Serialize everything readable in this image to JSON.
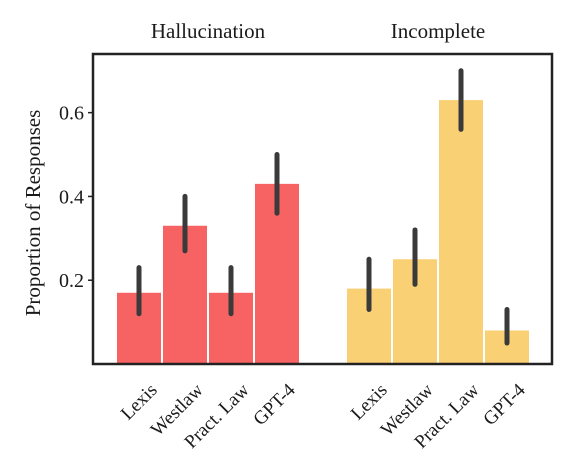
{
  "chart_data": {
    "type": "bar",
    "ylabel": "Proportion of Responses",
    "yticks": [
      0.2,
      0.4,
      0.6
    ],
    "ytick_labels": [
      "0.2",
      "0.4",
      "0.6"
    ],
    "ylim": [
      0.0,
      0.74
    ],
    "grid": false,
    "groups": [
      {
        "name": "Hallucination",
        "color": "#f76263",
        "categories": [
          "Lexis",
          "Westlaw",
          "Pract. Law",
          "GPT-4"
        ],
        "values": [
          0.17,
          0.33,
          0.17,
          0.43
        ],
        "error_low": [
          0.12,
          0.27,
          0.12,
          0.36
        ],
        "error_high": [
          0.23,
          0.4,
          0.23,
          0.5
        ]
      },
      {
        "name": "Incomplete",
        "color": "#f9d073",
        "categories": [
          "Lexis",
          "Westlaw",
          "Pract. Law",
          "GPT-4"
        ],
        "values": [
          0.18,
          0.25,
          0.63,
          0.08
        ],
        "error_low": [
          0.13,
          0.19,
          0.56,
          0.05
        ],
        "error_high": [
          0.25,
          0.32,
          0.7,
          0.13
        ]
      }
    ]
  }
}
